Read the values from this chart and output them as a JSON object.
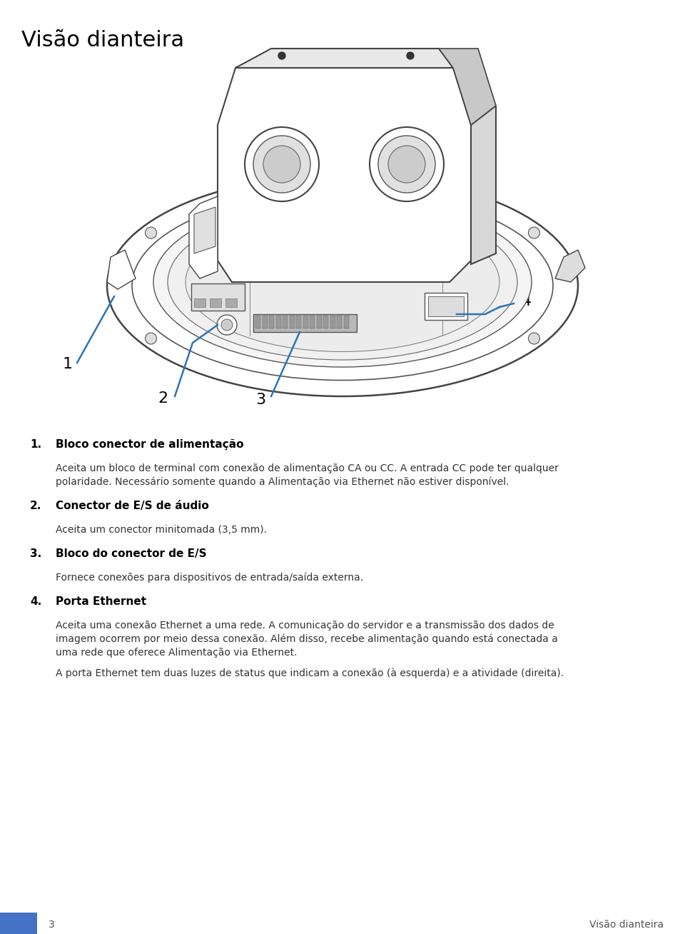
{
  "title": "Visão dianteira",
  "title_fontsize": 22,
  "title_color": "#000000",
  "background_color": "#ffffff",
  "footer_page": "3",
  "footer_right": "Visão dianteira",
  "footer_color": "#555555",
  "footer_fontsize": 10,
  "footer_bar_color": "#4472C4",
  "sections": [
    {
      "number": "1.",
      "heading": "Bloco conector de alimentação",
      "body": "Aceita um bloco de terminal com conexão de alimentação CA ou CC. A entrada CC pode ter qualquer\npolaridade. Necessário somente quando a Alimentação via Ethernet não estiver disponível."
    },
    {
      "number": "2.",
      "heading": "Conector de E/S de áudio",
      "body": "Aceita um conector minitomada (3,5 mm)."
    },
    {
      "number": "3.",
      "heading": "Bloco do conector de E/S",
      "body": "Fornece conexões para dispositivos de entrada/saída externa."
    },
    {
      "number": "4.",
      "heading": "Porta Ethernet",
      "body": "Aceita uma conexão Ethernet a uma rede. A comunicação do servidor e a transmissão dos dados de\nimagem ocorrem por meio dessa conexão. Além disso, recebe alimentação quando está conectada a\numa rede que oferece Alimentação via Ethernet.\n\nA porta Ethernet tem duas luzes de status que indicam a conexão (à esquerda) e a atividade (direita)."
    }
  ],
  "callout_color": "#2E74B5",
  "heading_color": "#000000",
  "heading_fontsize": 11,
  "body_fontsize": 10,
  "body_color": "#333333"
}
